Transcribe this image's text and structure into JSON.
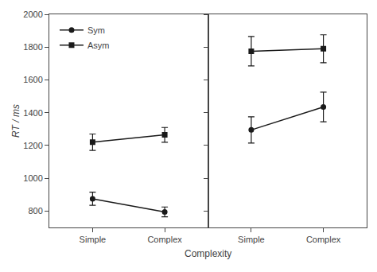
{
  "chart_data": [
    {
      "type": "line",
      "categories": [
        "Simple",
        "Complex"
      ],
      "ylabel": "RT / ms",
      "xlabel": "Complexity",
      "ylim": [
        700,
        2000
      ],
      "yticks": [
        800,
        1000,
        1200,
        1400,
        1600,
        1800,
        2000
      ],
      "grid": false,
      "legend": "upper left",
      "series": [
        {
          "name": "Sym",
          "color": "#1a1a1a",
          "marker": "circle",
          "values": [
            875,
            795
          ],
          "errors": [
            40,
            30
          ]
        },
        {
          "name": "Asym",
          "color": "#1a1a1a",
          "marker": "square",
          "values": [
            1220,
            1265
          ],
          "errors": [
            50,
            45
          ]
        }
      ]
    },
    {
      "type": "line",
      "categories": [
        "Simple",
        "Complex"
      ],
      "ylim": [
        700,
        2000
      ],
      "yticks": [
        800,
        1000,
        1200,
        1400,
        1600,
        1800,
        2000
      ],
      "grid": false,
      "tick_labels": "x",
      "series": [
        {
          "color": "#1a1a1a",
          "marker": "circle",
          "values": [
            1295,
            1435
          ],
          "errors": [
            80,
            90
          ]
        },
        {
          "color": "#1a1a1a",
          "marker": "square",
          "values": [
            1775,
            1790
          ],
          "errors": [
            90,
            85
          ]
        }
      ]
    }
  ]
}
